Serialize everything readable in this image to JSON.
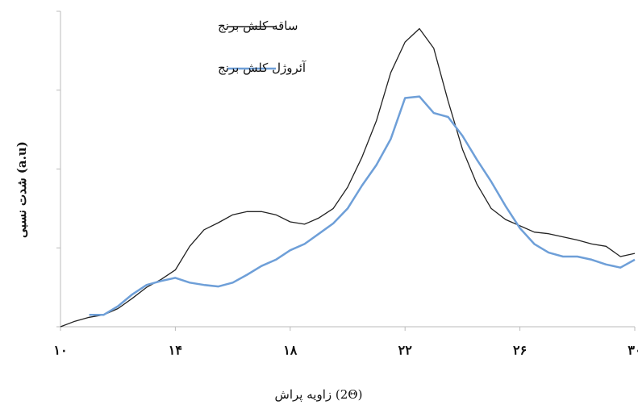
{
  "chart_data": {
    "type": "line",
    "xlabel": "زاویه پراش (2Θ)",
    "ylabel": "شدت نسبی (a.u)",
    "xlim": [
      10,
      30
    ],
    "xticks": [
      {
        "value": 10,
        "label": "۱۰"
      },
      {
        "value": 14,
        "label": "۱۴"
      },
      {
        "value": 18,
        "label": "۱۸"
      },
      {
        "value": 22,
        "label": "۲۲"
      },
      {
        "value": 26,
        "label": "۲۶"
      },
      {
        "value": 30,
        "label": "۳۰"
      }
    ],
    "ylim": [
      0,
      4
    ],
    "yticks": [
      0,
      1,
      2,
      3,
      4
    ],
    "legend": "top-left",
    "series": [
      {
        "name": "ساقه کلش برنج",
        "color": "#222222",
        "x": [
          10,
          10.5,
          11,
          11.5,
          12,
          12.5,
          13,
          13.5,
          14,
          14.5,
          15,
          15.5,
          16,
          16.5,
          17,
          17.5,
          18,
          18.5,
          19,
          19.5,
          20,
          20.5,
          21,
          21.5,
          22,
          22.5,
          23,
          23.5,
          24,
          24.5,
          25,
          25.5,
          26,
          26.5,
          27,
          27.5,
          28,
          28.5,
          29,
          29.5,
          30
        ],
        "values": [
          0,
          0.07,
          0.12,
          0.15,
          0.23,
          0.36,
          0.5,
          0.6,
          0.72,
          1.02,
          1.23,
          1.32,
          1.42,
          1.46,
          1.46,
          1.42,
          1.33,
          1.3,
          1.38,
          1.5,
          1.77,
          2.15,
          2.61,
          3.22,
          3.61,
          3.78,
          3.53,
          2.86,
          2.25,
          1.81,
          1.5,
          1.36,
          1.28,
          1.2,
          1.18,
          1.14,
          1.1,
          1.05,
          1.02,
          0.89,
          0.93
        ]
      },
      {
        "name": "آئروژل کلش برنج",
        "color": "#6e9fd8",
        "x": [
          11,
          11.5,
          12,
          12.5,
          13,
          13.5,
          14,
          14.5,
          15,
          15.5,
          16,
          16.5,
          17,
          17.5,
          18,
          18.5,
          19,
          19.5,
          20,
          20.5,
          21,
          21.5,
          22,
          22.5,
          23,
          23.5,
          24,
          24.5,
          25,
          25.5,
          26,
          26.5,
          27,
          27.5,
          28,
          28.5,
          29,
          29.5,
          30
        ],
        "values": [
          0.15,
          0.15,
          0.26,
          0.41,
          0.53,
          0.58,
          0.62,
          0.56,
          0.53,
          0.51,
          0.56,
          0.66,
          0.77,
          0.85,
          0.97,
          1.05,
          1.18,
          1.31,
          1.5,
          1.79,
          2.05,
          2.38,
          2.9,
          2.92,
          2.71,
          2.66,
          2.42,
          2.12,
          1.84,
          1.53,
          1.25,
          1.05,
          0.94,
          0.89,
          0.89,
          0.85,
          0.79,
          0.75,
          0.85
        ]
      }
    ]
  }
}
